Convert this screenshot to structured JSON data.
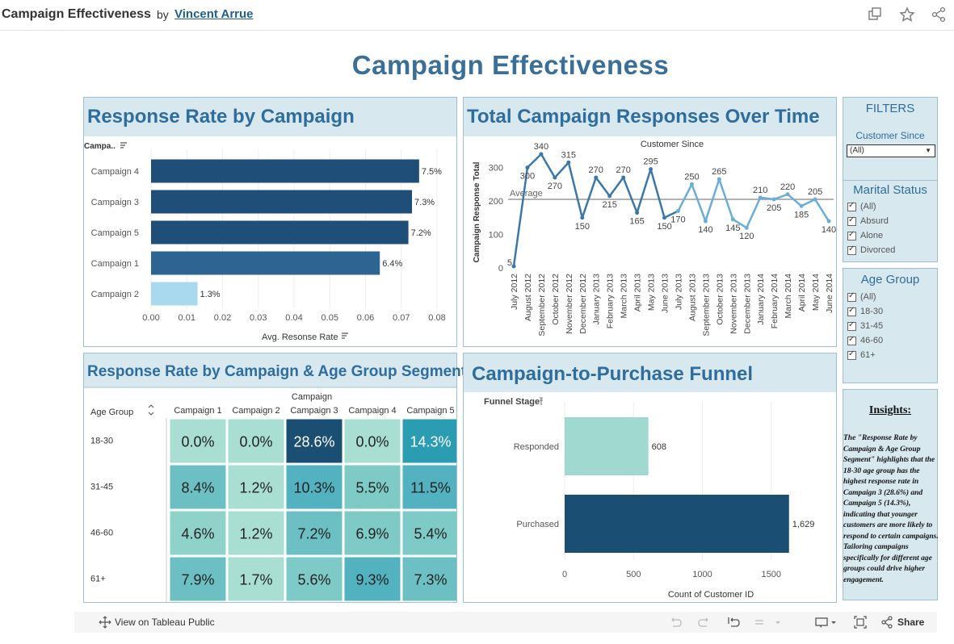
{
  "header": {
    "title": "Campaign Effectiveness",
    "by": "by",
    "author": "Vincent Arrue"
  },
  "dashboard_title": "Campaign Effectiveness",
  "colors": {
    "dark": "#1f4e79",
    "mid": "#2e6491",
    "light": "#a9d9ee",
    "teal_dark": "#1a4f73",
    "panel_head": "#d7e8ef",
    "title": "#3a6f99"
  },
  "filters": {
    "title": "FILTERS",
    "customer_since_label": "Customer Since",
    "customer_since_value": "(All)",
    "marital_status": {
      "title": "Marital Status",
      "options": [
        "(All)",
        "Absurd",
        "Alone",
        "Divorced"
      ]
    },
    "age_group": {
      "title": "Age Group",
      "options": [
        "(All)",
        "18-30",
        "31-45",
        "46-60",
        "61+"
      ]
    }
  },
  "insights": {
    "title": "Insights",
    "colon": ":",
    "body": "The \"Response Rate by Campaign & Age Group Segment\" highlights that the 18-30 age group has the highest response rate in Campaign 3 (28.6%) and Campaign 5 (14.3%), indicating that younger customers are more likely to respond to certain campaigns. Tailoring campaigns specifically for different age groups could drive higher engagement."
  },
  "bottombar": {
    "view": "View on Tableau Public",
    "share": "Share"
  },
  "chart_data": [
    {
      "type": "bar",
      "title": "Response Rate by Campaign",
      "y_header": "Campa..",
      "xlabel": "Avg. Resonse Rate",
      "categories": [
        "Campaign 4",
        "Campaign 3",
        "Campaign 5",
        "Campaign 1",
        "Campaign 2"
      ],
      "values": [
        0.075,
        0.073,
        0.072,
        0.064,
        0.013
      ],
      "labels": [
        "7.5%",
        "7.3%",
        "7.2%",
        "6.4%",
        "1.3%"
      ],
      "colors": [
        "#1f4e79",
        "#1f4e79",
        "#1f4e79",
        "#2e6491",
        "#a9d9ee"
      ],
      "xticks": [
        "0.00",
        "0.01",
        "0.02",
        "0.03",
        "0.04",
        "0.05",
        "0.06",
        "0.07",
        "0.08"
      ],
      "xlim": [
        0,
        0.08
      ]
    },
    {
      "type": "line",
      "title": "Total Campaign Responses Over Time",
      "subtitle": "Customer Since",
      "ylabel": "Campaign Response Total",
      "reference_line_label": "Average",
      "reference_line_value": 205,
      "ylim": [
        0,
        340
      ],
      "yticks": [
        0,
        100,
        200,
        300
      ],
      "x": [
        "July 2012",
        "August 2012",
        "September 2012",
        "October 2012",
        "November 2012",
        "December 2012",
        "January 2013",
        "February 2013",
        "March 2013",
        "April 2013",
        "May 2013",
        "June 2013",
        "July 2013",
        "August 2013",
        "September 2013",
        "October 2013",
        "November 2013",
        "December 2013",
        "January 2014",
        "February 2014",
        "March 2014",
        "April 2014",
        "May 2014",
        "June 2014"
      ],
      "values": [
        5,
        300,
        340,
        270,
        315,
        150,
        270,
        215,
        270,
        165,
        295,
        150,
        170,
        250,
        140,
        265,
        145,
        120,
        210,
        205,
        220,
        185,
        205,
        140
      ],
      "point_labels": [
        "5",
        "300",
        "340",
        "270",
        "315",
        "150",
        "270",
        "215",
        "270",
        "165",
        "295",
        "150",
        "170",
        "250",
        "140",
        "265",
        "145",
        "120",
        "210",
        "205",
        "220",
        "185",
        "205",
        "140"
      ]
    },
    {
      "type": "heatmap",
      "title": "Response Rate by Campaign & Age Group Segment",
      "column_header": "Campaign",
      "row_header": "Age Group",
      "columns": [
        "Campaign 1",
        "Campaign 2",
        "Campaign 3",
        "Campaign 4",
        "Campaign 5"
      ],
      "rows": [
        "18-30",
        "31-45",
        "46-60",
        "61+"
      ],
      "values": [
        [
          0.0,
          0.0,
          28.6,
          0.0,
          14.3
        ],
        [
          8.4,
          1.2,
          10.3,
          5.5,
          11.5
        ],
        [
          4.6,
          1.2,
          7.2,
          6.9,
          5.4
        ],
        [
          7.9,
          1.7,
          5.6,
          9.3,
          7.3
        ]
      ],
      "labels": [
        [
          "0.0%",
          "0.0%",
          "28.6%",
          "0.0%",
          "14.3%"
        ],
        [
          "8.4%",
          "1.2%",
          "10.3%",
          "5.5%",
          "11.5%"
        ],
        [
          "4.6%",
          "1.2%",
          "7.2%",
          "6.9%",
          "5.4%"
        ],
        [
          "7.9%",
          "1.7%",
          "5.6%",
          "9.3%",
          "7.3%"
        ]
      ]
    },
    {
      "type": "bar",
      "title": "Campaign-to-Purchase Funnel",
      "y_header": "Funnel Stage",
      "xlabel": "Count of Customer ID",
      "categories": [
        "Responded",
        "Purchased"
      ],
      "values": [
        608,
        1629
      ],
      "labels": [
        "608",
        "1,629"
      ],
      "colors": [
        "#9fd9cf",
        "#1a4f73"
      ],
      "xticks": [
        "0",
        "500",
        "1000",
        "1500"
      ],
      "xlim": [
        0,
        1900
      ]
    }
  ]
}
